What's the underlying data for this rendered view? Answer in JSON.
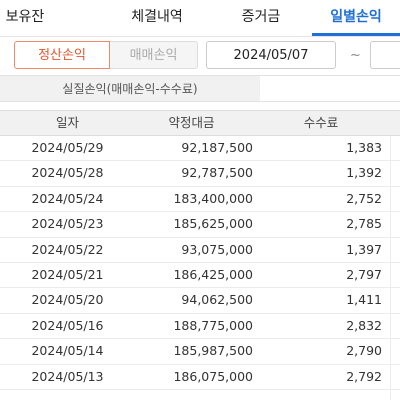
{
  "tabs": [
    {
      "label": "보유잔고"
    },
    {
      "label": "체결내역"
    },
    {
      "label": "증거금"
    },
    {
      "label": "일별손익"
    }
  ],
  "filter": {
    "segments": [
      "정산손익",
      "매매손익"
    ],
    "start_date": "2024/05/07",
    "separator": "~"
  },
  "summary": {
    "label": "실질손익(매매손익-수수료)"
  },
  "table": {
    "headers": [
      "일자",
      "약정대금",
      "수수료"
    ],
    "rows": [
      {
        "date": "2024/05/29",
        "amount": "92,187,500",
        "fee": "1,383"
      },
      {
        "date": "2024/05/28",
        "amount": "92,787,500",
        "fee": "1,392"
      },
      {
        "date": "2024/05/24",
        "amount": "183,400,000",
        "fee": "2,752"
      },
      {
        "date": "2024/05/23",
        "amount": "185,625,000",
        "fee": "2,785"
      },
      {
        "date": "2024/05/22",
        "amount": "93,075,000",
        "fee": "1,397"
      },
      {
        "date": "2024/05/21",
        "amount": "186,425,000",
        "fee": "2,797"
      },
      {
        "date": "2024/05/20",
        "amount": "94,062,500",
        "fee": "1,411"
      },
      {
        "date": "2024/05/16",
        "amount": "188,775,000",
        "fee": "2,832"
      },
      {
        "date": "2024/05/14",
        "amount": "185,987,500",
        "fee": "2,790"
      },
      {
        "date": "2024/05/13",
        "amount": "186,075,000",
        "fee": "2,792"
      }
    ]
  },
  "colors": {
    "active_tab": "#1f6fd6",
    "active_segment": "#e8542c"
  }
}
